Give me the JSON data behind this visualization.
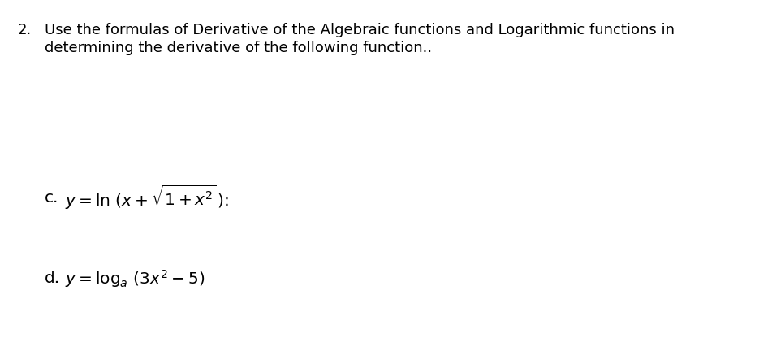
{
  "background_color": "#ffffff",
  "num_label": "2.",
  "title_line1": "Use the formulas of Derivative of the Algebraic functions and Logarithmic functions in",
  "title_line2": "determining the derivative of the following function..",
  "item_c_label": "c.",
  "item_c_math": "$y = \\ln\\,(x + \\sqrt{1 + x^2}\\,)$:",
  "item_d_label": "d.",
  "item_d_math": "$y = \\log_a\\,(3x^2 - 5)$",
  "title_fontsize": 13.0,
  "item_fontsize": 14.5,
  "text_color": "#000000",
  "background_color2": "#ffffff"
}
